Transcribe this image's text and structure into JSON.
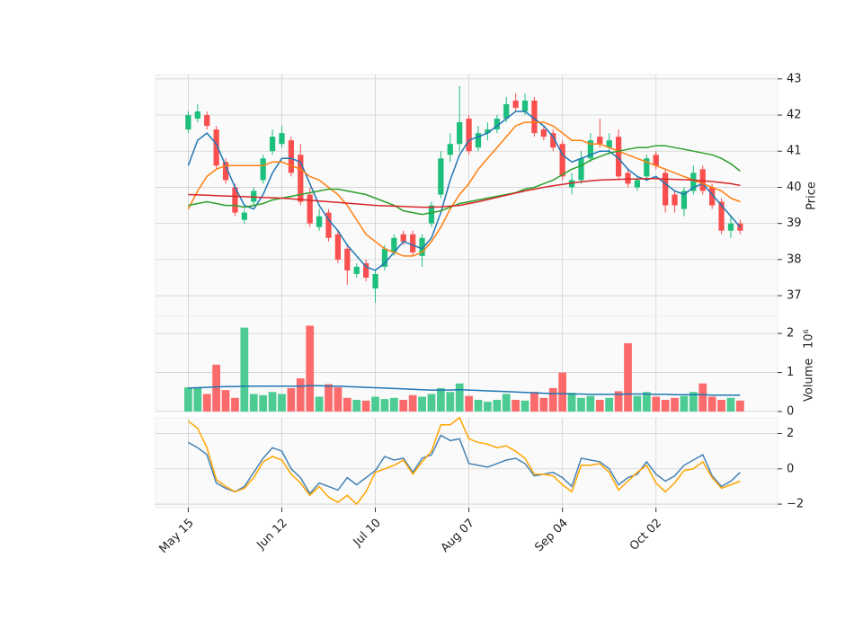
{
  "chart_data": [
    {
      "type": "candlestick",
      "ylabel": "Price",
      "ylim": [
        36.43,
        43.12
      ],
      "yticks": [
        37,
        38,
        39,
        40,
        41,
        42,
        43
      ],
      "xlim": [
        -7,
        126
      ],
      "grid": true,
      "up_color": "#1dbf7c",
      "down_color": "#fa4f4f",
      "x": [
        0,
        2,
        4,
        6,
        8,
        10,
        12,
        14,
        16,
        18,
        20,
        22,
        24,
        26,
        28,
        30,
        32,
        34,
        36,
        38,
        40,
        42,
        44,
        46,
        48,
        50,
        52,
        54,
        56,
        58,
        60,
        62,
        64,
        66,
        68,
        70,
        72,
        74,
        76,
        78,
        80,
        82,
        84,
        86,
        88,
        90,
        92,
        94,
        96,
        98,
        100,
        102,
        104,
        106,
        108,
        110,
        112,
        114,
        116,
        118
      ],
      "open": [
        41.6,
        41.9,
        42.0,
        41.6,
        40.7,
        40.0,
        39.1,
        39.6,
        40.2,
        41.0,
        41.2,
        41.3,
        40.9,
        39.8,
        38.9,
        39.3,
        38.7,
        38.3,
        37.6,
        37.9,
        37.2,
        37.8,
        38.2,
        38.7,
        38.7,
        38.1,
        39.0,
        39.8,
        40.9,
        41.2,
        41.9,
        41.1,
        41.5,
        41.6,
        41.9,
        42.4,
        42.1,
        42.4,
        41.6,
        41.5,
        41.2,
        40.0,
        40.2,
        40.8,
        41.4,
        41.1,
        41.4,
        40.4,
        40.0,
        40.3,
        40.9,
        40.4,
        39.8,
        39.4,
        39.9,
        40.5,
        40.0,
        39.6,
        38.8,
        39.0
      ],
      "high": [
        42.1,
        42.3,
        42.1,
        41.7,
        40.8,
        40.1,
        39.4,
        40.0,
        40.9,
        41.6,
        41.7,
        41.4,
        41.2,
        40.0,
        39.4,
        39.4,
        38.8,
        38.4,
        37.9,
        38.0,
        37.7,
        38.4,
        38.7,
        38.8,
        38.8,
        38.7,
        39.6,
        41.0,
        41.5,
        42.8,
        42.0,
        41.7,
        41.8,
        42.0,
        42.5,
        42.6,
        42.6,
        42.5,
        41.7,
        41.6,
        41.3,
        40.4,
        41.0,
        41.5,
        41.9,
        41.5,
        41.6,
        40.5,
        40.3,
        40.9,
        41.0,
        40.5,
        39.9,
        40.0,
        40.6,
        40.6,
        40.1,
        39.7,
        39.2,
        39.1
      ],
      "low": [
        41.5,
        41.8,
        41.6,
        40.5,
        40.1,
        39.2,
        39.0,
        39.5,
        40.1,
        40.9,
        41.1,
        40.3,
        39.5,
        38.9,
        38.8,
        38.5,
        37.9,
        37.3,
        37.5,
        37.4,
        36.8,
        37.7,
        38.1,
        38.4,
        38.1,
        37.8,
        38.9,
        39.7,
        40.7,
        41.0,
        40.9,
        41.0,
        41.3,
        41.5,
        41.8,
        42.1,
        42.0,
        41.4,
        41.3,
        41.0,
        40.2,
        39.8,
        40.1,
        40.7,
        41.1,
        40.9,
        40.2,
        40.0,
        39.9,
        40.2,
        40.5,
        39.3,
        39.3,
        39.2,
        39.8,
        39.8,
        39.4,
        38.7,
        38.6,
        38.7
      ],
      "close": [
        42.0,
        42.1,
        41.7,
        40.6,
        40.2,
        39.3,
        39.3,
        39.9,
        40.8,
        41.4,
        41.5,
        40.4,
        39.6,
        39.0,
        39.2,
        38.6,
        38.0,
        37.7,
        37.8,
        37.5,
        37.6,
        38.3,
        38.6,
        38.5,
        38.2,
        38.6,
        39.5,
        40.8,
        41.2,
        41.8,
        41.0,
        41.5,
        41.6,
        41.9,
        42.3,
        42.2,
        42.4,
        41.5,
        41.4,
        41.1,
        40.3,
        40.2,
        40.8,
        41.3,
        41.2,
        41.3,
        40.3,
        40.1,
        40.2,
        40.8,
        40.6,
        39.5,
        39.5,
        39.9,
        40.4,
        39.9,
        39.5,
        38.8,
        39.0,
        38.8
      ],
      "series": [
        {
          "color": "#1f77b4",
          "values": [
            40.6,
            41.3,
            41.5,
            41.2,
            40.6,
            40.0,
            39.5,
            39.4,
            39.8,
            40.4,
            40.8,
            40.8,
            40.7,
            40.1,
            39.5,
            39.1,
            38.8,
            38.4,
            38.1,
            37.8,
            37.7,
            37.9,
            38.2,
            38.5,
            38.4,
            38.3,
            38.6,
            39.3,
            40.2,
            40.9,
            41.3,
            41.4,
            41.5,
            41.7,
            41.9,
            42.1,
            42.1,
            41.9,
            41.7,
            41.4,
            40.9,
            40.7,
            40.8,
            40.9,
            41.0,
            41.0,
            40.8,
            40.5,
            40.3,
            40.2,
            40.3,
            40.1,
            39.9,
            39.8,
            40.0,
            40.1,
            39.8,
            39.5,
            39.2,
            38.9
          ]
        },
        {
          "color": "#ff7f0e",
          "values": [
            39.4,
            39.9,
            40.3,
            40.5,
            40.6,
            40.6,
            40.6,
            40.6,
            40.6,
            40.7,
            40.7,
            40.6,
            40.5,
            40.3,
            40.2,
            40.0,
            39.8,
            39.5,
            39.1,
            38.7,
            38.5,
            38.3,
            38.2,
            38.1,
            38.1,
            38.2,
            38.5,
            38.9,
            39.4,
            39.8,
            40.1,
            40.5,
            40.8,
            41.1,
            41.4,
            41.7,
            41.8,
            41.8,
            41.8,
            41.7,
            41.5,
            41.3,
            41.3,
            41.2,
            41.2,
            41.1,
            41.0,
            40.9,
            40.8,
            40.7,
            40.6,
            40.5,
            40.4,
            40.3,
            40.2,
            40.1,
            40.0,
            39.9,
            39.7,
            39.6
          ]
        },
        {
          "color": "#2ca02c",
          "values": [
            39.5,
            39.55,
            39.6,
            39.55,
            39.5,
            39.5,
            39.45,
            39.5,
            39.55,
            39.65,
            39.7,
            39.75,
            39.8,
            39.85,
            39.9,
            39.95,
            39.95,
            39.9,
            39.85,
            39.8,
            39.7,
            39.6,
            39.5,
            39.35,
            39.3,
            39.25,
            39.3,
            39.35,
            39.45,
            39.55,
            39.6,
            39.65,
            39.7,
            39.75,
            39.8,
            39.85,
            39.95,
            40.0,
            40.1,
            40.2,
            40.35,
            40.5,
            40.6,
            40.75,
            40.85,
            40.95,
            41.0,
            41.05,
            41.1,
            41.1,
            41.15,
            41.15,
            41.1,
            41.05,
            41.0,
            40.95,
            40.9,
            40.8,
            40.65,
            40.45
          ]
        },
        {
          "color": "#d62728",
          "values": [
            39.8,
            39.79,
            39.78,
            39.77,
            39.76,
            39.75,
            39.74,
            39.73,
            39.72,
            39.71,
            39.7,
            39.68,
            39.66,
            39.64,
            39.62,
            39.6,
            39.58,
            39.56,
            39.54,
            39.52,
            39.5,
            39.49,
            39.48,
            39.47,
            39.46,
            39.45,
            39.45,
            39.46,
            39.48,
            39.5,
            39.55,
            39.6,
            39.66,
            39.72,
            39.78,
            39.84,
            39.9,
            39.95,
            40.0,
            40.04,
            40.08,
            40.12,
            40.15,
            40.18,
            40.2,
            40.21,
            40.22,
            40.23,
            40.23,
            40.24,
            40.24,
            40.23,
            40.22,
            40.21,
            40.2,
            40.18,
            40.16,
            40.13,
            40.1,
            40.05
          ]
        }
      ]
    },
    {
      "type": "volume",
      "ylabel": "Volume",
      "offset_label": "10⁶",
      "ylim": [
        0,
        2.44
      ],
      "yticks": [
        0,
        1,
        2
      ],
      "xlim": [
        -7,
        126
      ],
      "grid": true,
      "up_color": "#4ccc93",
      "down_color": "#fc6b6b",
      "x": [
        0,
        2,
        4,
        6,
        8,
        10,
        12,
        14,
        16,
        18,
        20,
        22,
        24,
        26,
        28,
        30,
        32,
        34,
        36,
        38,
        40,
        42,
        44,
        46,
        48,
        50,
        52,
        54,
        56,
        58,
        60,
        62,
        64,
        66,
        68,
        70,
        72,
        74,
        76,
        78,
        80,
        82,
        84,
        86,
        88,
        90,
        92,
        94,
        96,
        98,
        100,
        102,
        104,
        106,
        108,
        110,
        112,
        114,
        116,
        118
      ],
      "values": [
        0.62,
        0.6,
        0.45,
        1.2,
        0.55,
        0.35,
        2.15,
        0.45,
        0.42,
        0.5,
        0.45,
        0.6,
        0.85,
        2.2,
        0.38,
        0.7,
        0.62,
        0.35,
        0.3,
        0.28,
        0.38,
        0.32,
        0.35,
        0.3,
        0.42,
        0.38,
        0.45,
        0.6,
        0.5,
        0.72,
        0.4,
        0.3,
        0.25,
        0.3,
        0.45,
        0.3,
        0.28,
        0.5,
        0.35,
        0.6,
        1.0,
        0.48,
        0.35,
        0.4,
        0.3,
        0.35,
        0.52,
        1.75,
        0.4,
        0.5,
        0.38,
        0.3,
        0.35,
        0.4,
        0.5,
        0.72,
        0.38,
        0.3,
        0.35,
        0.28
      ],
      "series": [
        {
          "color": "#1f77b4",
          "values": [
            0.6,
            0.61,
            0.62,
            0.63,
            0.64,
            0.64,
            0.65,
            0.65,
            0.65,
            0.65,
            0.65,
            0.65,
            0.65,
            0.66,
            0.66,
            0.65,
            0.65,
            0.64,
            0.63,
            0.62,
            0.61,
            0.6,
            0.59,
            0.58,
            0.57,
            0.56,
            0.55,
            0.55,
            0.55,
            0.56,
            0.55,
            0.54,
            0.53,
            0.52,
            0.51,
            0.5,
            0.49,
            0.48,
            0.47,
            0.46,
            0.46,
            0.45,
            0.45,
            0.44,
            0.44,
            0.44,
            0.44,
            0.45,
            0.45,
            0.45,
            0.44,
            0.44,
            0.43,
            0.43,
            0.43,
            0.43,
            0.42,
            0.42,
            0.42,
            0.42
          ]
        }
      ]
    },
    {
      "type": "line",
      "ylim": [
        -2.2,
        2.89
      ],
      "yticks": [
        {
          "value": -2,
          "label": "−2"
        },
        0,
        2
      ],
      "xlim": [
        -7,
        126
      ],
      "grid": true,
      "xticks": [
        {
          "value": 0,
          "label": "May 15"
        },
        {
          "value": 20,
          "label": "Jun 12"
        },
        {
          "value": 40,
          "label": "Jul 10"
        },
        {
          "value": 60,
          "label": "Aug 07"
        },
        {
          "value": 80,
          "label": "Sep 04"
        },
        {
          "value": 100,
          "label": "Oct 02"
        }
      ],
      "x": [
        0,
        2,
        4,
        6,
        8,
        10,
        12,
        14,
        16,
        18,
        20,
        22,
        24,
        26,
        28,
        30,
        32,
        34,
        36,
        38,
        40,
        42,
        44,
        46,
        48,
        50,
        52,
        54,
        56,
        58,
        60,
        62,
        64,
        66,
        68,
        70,
        72,
        74,
        76,
        78,
        80,
        82,
        84,
        86,
        88,
        90,
        92,
        94,
        96,
        98,
        100,
        102,
        104,
        106,
        108,
        110,
        112,
        114,
        116,
        118
      ],
      "series": [
        {
          "color": "#4682b4",
          "values": [
            1.5,
            1.2,
            0.8,
            -0.8,
            -1.1,
            -1.3,
            -1.0,
            -0.2,
            0.6,
            1.2,
            1.0,
            0.0,
            -0.5,
            -1.4,
            -0.8,
            -1.0,
            -1.2,
            -0.5,
            -0.9,
            -0.5,
            -0.1,
            0.7,
            0.5,
            0.6,
            -0.2,
            0.6,
            0.8,
            1.9,
            1.6,
            1.7,
            0.3,
            0.2,
            0.1,
            0.3,
            0.5,
            0.6,
            0.3,
            -0.4,
            -0.3,
            -0.2,
            -0.5,
            -1.0,
            0.6,
            0.5,
            0.4,
            0.0,
            -0.9,
            -0.5,
            -0.3,
            0.4,
            -0.3,
            -0.7,
            -0.4,
            0.2,
            0.5,
            0.8,
            -0.4,
            -1.0,
            -0.7,
            -0.2
          ]
        },
        {
          "color": "#ffa500",
          "values": [
            2.7,
            2.3,
            1.2,
            -0.6,
            -1.0,
            -1.3,
            -1.1,
            -0.5,
            0.4,
            0.7,
            0.5,
            -0.3,
            -0.8,
            -1.5,
            -1.0,
            -1.6,
            -1.9,
            -1.5,
            -2.0,
            -1.3,
            -0.2,
            0.0,
            0.2,
            0.5,
            -0.3,
            0.4,
            1.0,
            2.5,
            2.5,
            2.9,
            1.7,
            1.5,
            1.4,
            1.2,
            1.3,
            1.0,
            0.6,
            -0.3,
            -0.3,
            -0.4,
            -0.9,
            -1.3,
            0.2,
            0.2,
            0.3,
            -0.2,
            -1.2,
            -0.7,
            -0.2,
            0.2,
            -0.8,
            -1.3,
            -0.8,
            -0.1,
            0.0,
            0.4,
            -0.5,
            -1.1,
            -0.9,
            -0.7
          ]
        }
      ]
    }
  ]
}
